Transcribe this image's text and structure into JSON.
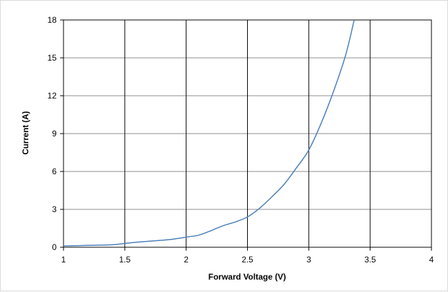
{
  "chart_data": {
    "type": "line",
    "title": "",
    "xlabel": "Forward Voltage (V)",
    "ylabel": "Current (A)",
    "xlim": [
      1,
      4
    ],
    "ylim": [
      0,
      18
    ],
    "x_ticks": [
      1,
      1.5,
      2,
      2.5,
      3,
      3.5,
      4
    ],
    "y_ticks": [
      0,
      3,
      6,
      9,
      12,
      15,
      18
    ],
    "x_tick_labels": [
      "1",
      "1.5",
      "2",
      "2.5",
      "3",
      "3.5",
      "4"
    ],
    "y_tick_labels": [
      "0",
      "3",
      "6",
      "9",
      "12",
      "15",
      "18"
    ],
    "grid": true,
    "legend": "none",
    "series": [
      {
        "color": "#4a7ebb",
        "x": [
          1.0,
          1.2,
          1.4,
          1.5,
          1.6,
          1.8,
          1.9,
          2.0,
          2.1,
          2.2,
          2.3,
          2.4,
          2.5,
          2.6,
          2.7,
          2.8,
          2.9,
          3.0,
          3.1,
          3.2,
          3.3,
          3.37
        ],
        "y": [
          0.1,
          0.15,
          0.2,
          0.3,
          0.4,
          0.55,
          0.65,
          0.8,
          0.95,
          1.3,
          1.7,
          2.0,
          2.4,
          3.1,
          4.0,
          5.0,
          6.3,
          7.7,
          9.8,
          12.3,
          15.2,
          18.0
        ]
      }
    ]
  }
}
